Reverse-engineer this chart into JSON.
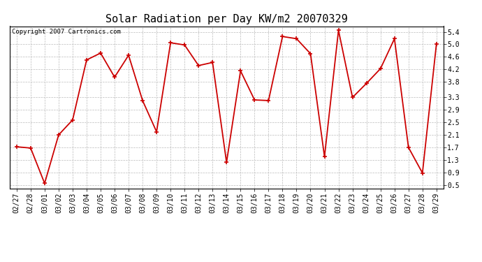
{
  "title": "Solar Radiation per Day KW/m2 20070329",
  "copyright_text": "Copyright 2007 Cartronics.com",
  "dates": [
    "02/27",
    "02/28",
    "03/01",
    "03/02",
    "03/03",
    "03/04",
    "03/05",
    "03/06",
    "03/07",
    "03/08",
    "03/09",
    "03/10",
    "03/11",
    "03/12",
    "03/13",
    "03/14",
    "03/15",
    "03/16",
    "03/17",
    "03/18",
    "03/19",
    "03/20",
    "03/21",
    "03/22",
    "03/23",
    "03/24",
    "03/25",
    "03/26",
    "03/27",
    "03/28",
    "03/29"
  ],
  "values": [
    1.72,
    1.68,
    0.55,
    2.1,
    2.58,
    4.5,
    4.72,
    3.95,
    4.65,
    3.2,
    2.2,
    5.05,
    4.98,
    4.32,
    4.42,
    1.22,
    4.15,
    3.22,
    3.2,
    5.25,
    5.18,
    4.7,
    1.4,
    5.45,
    3.3,
    3.75,
    4.22,
    5.18,
    1.7,
    0.88,
    5.02
  ],
  "yticks": [
    0.5,
    0.9,
    1.3,
    1.7,
    2.1,
    2.5,
    2.9,
    3.3,
    3.8,
    4.2,
    4.6,
    5.0,
    5.4
  ],
  "ytick_labels": [
    "0.5",
    "0.9",
    "1.3",
    "1.7",
    "2.1",
    "2.5",
    "2.9",
    "3.3",
    "3.8",
    "4.2",
    "4.6",
    "5.0",
    "5.4"
  ],
  "ylim": [
    0.38,
    5.58
  ],
  "line_color": "#cc0000",
  "marker": "+",
  "marker_size": 5,
  "marker_linewidth": 1.2,
  "bg_color": "#ffffff",
  "grid_color": "#bbbbbb",
  "title_fontsize": 11,
  "copyright_fontsize": 6.5,
  "tick_fontsize": 7,
  "linewidth": 1.3
}
